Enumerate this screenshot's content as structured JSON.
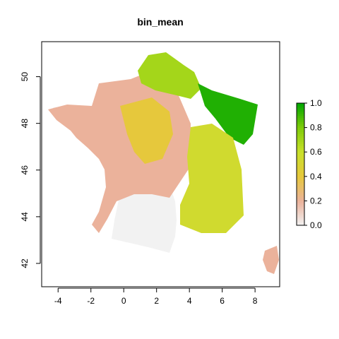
{
  "chart_data": {
    "type": "heatmap",
    "title": "bin_mean",
    "xlabel": "",
    "ylabel": "",
    "xlim": [
      -5,
      9.5
    ],
    "ylim": [
      41,
      51.5
    ],
    "x_ticks": [
      -4,
      -2,
      0,
      2,
      4,
      6,
      8
    ],
    "y_ticks": [
      42,
      44,
      46,
      48,
      50
    ],
    "x_tick_labels": [
      "-4",
      "-2",
      "0",
      "2",
      "4",
      "6",
      "8"
    ],
    "y_tick_labels": [
      "42",
      "44",
      "46",
      "48",
      "50"
    ],
    "legend": {
      "placement": "right",
      "range": [
        0,
        1
      ],
      "ticks": [
        0.0,
        0.2,
        0.4,
        0.6,
        0.8,
        1.0
      ],
      "tick_labels": [
        "0.0",
        "0.2",
        "0.4",
        "0.6",
        "0.8",
        "1.0"
      ],
      "colors": [
        "#f2f2f2",
        "#ebb29b",
        "#e6c83c",
        "#c9e02a",
        "#7fcc0a",
        "#00a600"
      ]
    },
    "regions": [
      {
        "name": "mediterranean-south",
        "value": 0.0
      },
      {
        "name": "brittany-tip",
        "value": 0.0
      },
      {
        "name": "west-center",
        "value": 0.2
      },
      {
        "name": "corsica",
        "value": 0.2
      },
      {
        "name": "central-yellow",
        "value": 0.4
      },
      {
        "name": "north",
        "value": 0.7
      },
      {
        "name": "northeast",
        "value": 0.95
      },
      {
        "name": "east-alps",
        "value": 0.55
      }
    ]
  }
}
